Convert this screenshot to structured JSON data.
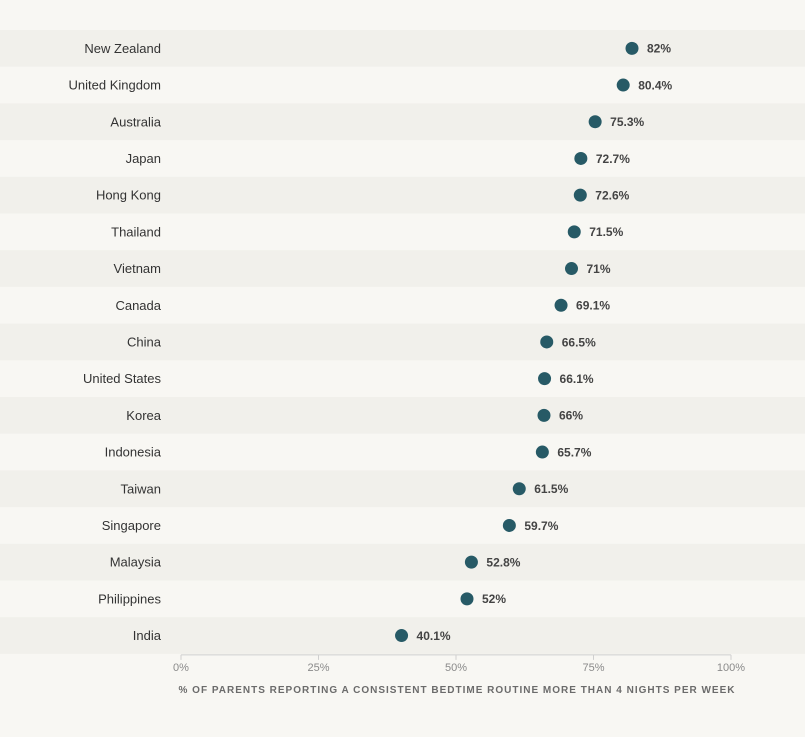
{
  "chart_data": {
    "type": "scatter",
    "orientation": "horizontal-dot",
    "categories": [
      "New Zealand",
      "United Kingdom",
      "Australia",
      "Japan",
      "Hong Kong",
      "Thailand",
      "Vietnam",
      "Canada",
      "China",
      "United States",
      "Korea",
      "Indonesia",
      "Taiwan",
      "Singapore",
      "Malaysia",
      "Philippines",
      "India"
    ],
    "values": [
      82,
      80.4,
      75.3,
      72.7,
      72.6,
      71.5,
      71,
      69.1,
      66.5,
      66.1,
      66,
      65.7,
      61.5,
      59.7,
      52.8,
      52,
      40.1
    ],
    "value_labels": [
      "82%",
      "80.4%",
      "75.3%",
      "72.7%",
      "72.6%",
      "71.5%",
      "71%",
      "69.1%",
      "66.5%",
      "66.1%",
      "66%",
      "65.7%",
      "61.5%",
      "59.7%",
      "52.8%",
      "52%",
      "40.1%"
    ],
    "xlim": [
      0,
      100
    ],
    "xticks": [
      0,
      25,
      50,
      75,
      100
    ],
    "xtick_labels": [
      "0%",
      "25%",
      "50%",
      "75%",
      "100%"
    ],
    "xlabel": "% OF PARENTS REPORTING A CONSISTENT BEDTIME ROUTINE MORE THAN 4 NIGHTS PER WEEK",
    "title": "",
    "grid": false,
    "legend": "none",
    "colors": {
      "dot": "#275a66",
      "band": "#f1f0eb",
      "axis": "#cfcfcf",
      "background": "#f8f7f3"
    }
  }
}
